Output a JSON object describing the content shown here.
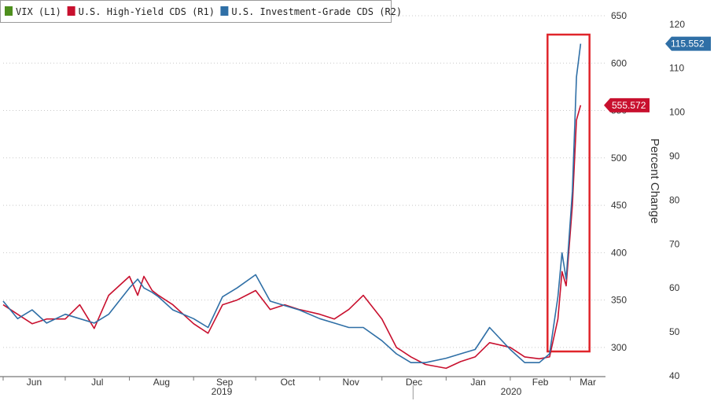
{
  "chart_data": {
    "type": "line",
    "legend": [
      {
        "label": "VIX (L1)",
        "color": "#4e8f1e"
      },
      {
        "label": "U.S. High-Yield CDS (R1)",
        "color": "#c8102e"
      },
      {
        "label": "U.S. Investment-Grade CDS (R2)",
        "color": "#2f6fa6"
      }
    ],
    "legend_position": "top-left",
    "r1_axis": {
      "ticks": [
        "650",
        "600",
        "550",
        "500",
        "450",
        "400",
        "350",
        "300"
      ],
      "range": [
        270,
        655
      ]
    },
    "r2_axis": {
      "ticks": [
        "120",
        "110",
        "100",
        "90",
        "80",
        "70",
        "60",
        "50",
        "40"
      ],
      "range": [
        40,
        123
      ],
      "title": "Percent Change"
    },
    "x_months": [
      "Jun",
      "Jul",
      "Aug",
      "Sep",
      "Oct",
      "Nov",
      "Dec",
      "Jan",
      "Feb",
      "Mar"
    ],
    "x_years": [
      "2019",
      "2020"
    ],
    "grid": true,
    "highlight_box": {
      "color": "#e0252b",
      "from": "Feb 20 2020",
      "to": "Mar 6 2020"
    },
    "last_values": {
      "hy": "555.572",
      "ig": "115.552"
    },
    "series": [
      {
        "name": "U.S. High-Yield CDS (R1)",
        "axis": "R1",
        "color": "#c8102e",
        "dates": [
          "2019-06-01",
          "2019-06-08",
          "2019-06-15",
          "2019-06-22",
          "2019-07-01",
          "2019-07-08",
          "2019-07-15",
          "2019-07-22",
          "2019-08-01",
          "2019-08-05",
          "2019-08-08",
          "2019-08-12",
          "2019-08-15",
          "2019-08-22",
          "2019-09-01",
          "2019-09-08",
          "2019-09-15",
          "2019-09-22",
          "2019-10-01",
          "2019-10-08",
          "2019-10-15",
          "2019-10-22",
          "2019-11-01",
          "2019-11-08",
          "2019-11-15",
          "2019-11-22",
          "2019-12-01",
          "2019-12-08",
          "2019-12-15",
          "2019-12-22",
          "2020-01-01",
          "2020-01-08",
          "2020-01-15",
          "2020-01-22",
          "2020-02-01",
          "2020-02-08",
          "2020-02-15",
          "2020-02-20",
          "2020-02-24",
          "2020-02-26",
          "2020-02-28",
          "2020-03-02",
          "2020-03-04",
          "2020-03-06"
        ],
        "values": [
          345,
          335,
          325,
          330,
          330,
          345,
          320,
          355,
          375,
          355,
          375,
          360,
          355,
          345,
          325,
          315,
          345,
          350,
          360,
          340,
          345,
          340,
          335,
          330,
          340,
          355,
          330,
          300,
          290,
          282,
          278,
          285,
          290,
          305,
          300,
          290,
          288,
          290,
          330,
          380,
          365,
          450,
          540,
          555.572
        ]
      },
      {
        "name": "U.S. Investment-Grade CDS (R2)",
        "axis": "R2",
        "color": "#2f6fa6",
        "dates": [
          "2019-06-01",
          "2019-06-08",
          "2019-06-15",
          "2019-06-22",
          "2019-07-01",
          "2019-07-08",
          "2019-07-15",
          "2019-07-22",
          "2019-08-01",
          "2019-08-05",
          "2019-08-08",
          "2019-08-12",
          "2019-08-15",
          "2019-08-22",
          "2019-09-01",
          "2019-09-08",
          "2019-09-15",
          "2019-09-22",
          "2019-10-01",
          "2019-10-08",
          "2019-10-15",
          "2019-10-22",
          "2019-11-01",
          "2019-11-08",
          "2019-11-15",
          "2019-11-22",
          "2019-12-01",
          "2019-12-08",
          "2019-12-15",
          "2019-12-22",
          "2020-01-01",
          "2020-01-08",
          "2020-01-15",
          "2020-01-22",
          "2020-02-01",
          "2020-02-08",
          "2020-02-15",
          "2020-02-20",
          "2020-02-24",
          "2020-02-26",
          "2020-02-28",
          "2020-03-02",
          "2020-03-04",
          "2020-03-06"
        ],
        "values": [
          57,
          53,
          55,
          52,
          54,
          53,
          52,
          54,
          60,
          62,
          60,
          59,
          58,
          55,
          53,
          51,
          58,
          60,
          63,
          57,
          56,
          55,
          53,
          52,
          51,
          51,
          48,
          45,
          43,
          43,
          44,
          45,
          46,
          51,
          46,
          43,
          43,
          45,
          58,
          68,
          62,
          82,
          108,
          115.552
        ]
      }
    ]
  }
}
